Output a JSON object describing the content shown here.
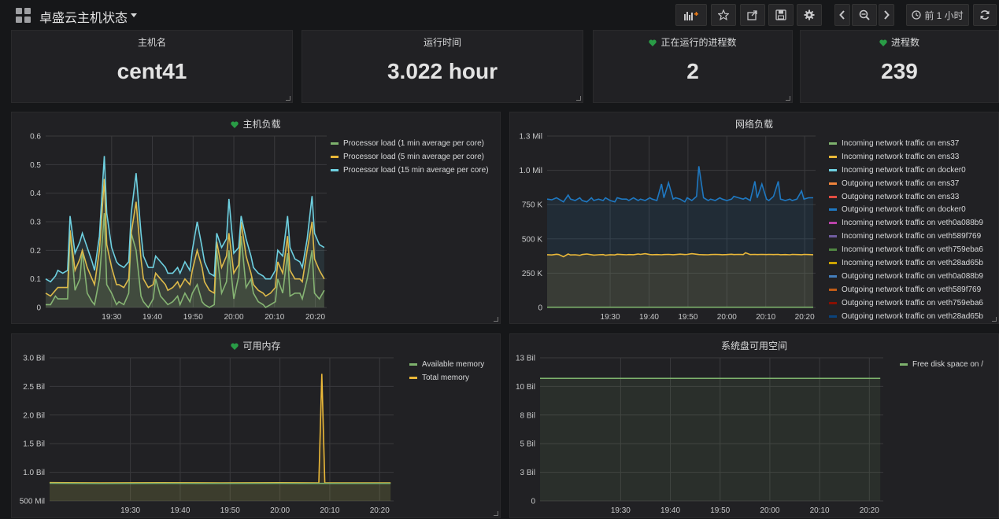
{
  "header": {
    "title": "卓盛云主机状态",
    "time_range": "前 1 小时",
    "icons": [
      "dashboard-grid-icon",
      "add-panel-icon",
      "star-icon",
      "share-icon",
      "save-icon",
      "settings-icon",
      "chevron-left-icon",
      "zoom-out-icon",
      "chevron-right-icon",
      "clock-icon",
      "refresh-icon"
    ]
  },
  "stats": [
    {
      "label": "主机名",
      "value": "cent41",
      "heart": false
    },
    {
      "label": "运行时间",
      "value": "3.022 hour",
      "heart": false
    },
    {
      "label": "正在运行的进程数",
      "value": "2",
      "heart": true
    },
    {
      "label": "进程数",
      "value": "239",
      "heart": true
    }
  ],
  "colors": {
    "green": "#7eb26d",
    "yellow": "#eab839",
    "cyan": "#6ed0e0",
    "orange": "#ef843c",
    "red": "#e24d42",
    "blue": "#1f78c1",
    "magenta": "#ba43a9",
    "purple": "#705da0",
    "dgreen": "#508642",
    "dyellow": "#cca300",
    "dblue": "#447ebc",
    "dorange": "#c15c17",
    "dred": "#890f02",
    "navy": "#0a437c",
    "heart": "#299c46"
  },
  "panels": {
    "load": {
      "title": "主机负载",
      "legend": [
        {
          "label": "Processor load (1 min average per core)",
          "color": "#7eb26d"
        },
        {
          "label": "Processor load (5 min average per core)",
          "color": "#eab839"
        },
        {
          "label": "Processor load (15 min average per core)",
          "color": "#6ed0e0"
        }
      ]
    },
    "network": {
      "title": "网络负载",
      "legend": [
        {
          "label": "Incoming network traffic on ens37",
          "color": "#7eb26d"
        },
        {
          "label": "Incoming network traffic on ens33",
          "color": "#eab839"
        },
        {
          "label": "Incoming network traffic on docker0",
          "color": "#6ed0e0"
        },
        {
          "label": "Outgoing network traffic on ens37",
          "color": "#ef843c"
        },
        {
          "label": "Outgoing network traffic on ens33",
          "color": "#e24d42"
        },
        {
          "label": "Outgoing network traffic on docker0",
          "color": "#1f78c1"
        },
        {
          "label": "Incoming network traffic on veth0a088b9",
          "color": "#ba43a9"
        },
        {
          "label": "Incoming network traffic on veth589f769",
          "color": "#705da0"
        },
        {
          "label": "Incoming network traffic on veth759eba6",
          "color": "#508642"
        },
        {
          "label": "Incoming network traffic on veth28ad65b",
          "color": "#cca300"
        },
        {
          "label": "Outgoing network traffic on veth0a088b9",
          "color": "#447ebc"
        },
        {
          "label": "Outgoing network traffic on veth589f769",
          "color": "#c15c17"
        },
        {
          "label": "Outgoing network traffic on veth759eba6",
          "color": "#890f02"
        },
        {
          "label": "Outgoing network traffic on veth28ad65b",
          "color": "#0a437c"
        }
      ]
    },
    "memory": {
      "title": "可用内存",
      "legend": [
        {
          "label": "Available memory",
          "color": "#7eb26d"
        },
        {
          "label": "Total memory",
          "color": "#eab839"
        }
      ]
    },
    "disk": {
      "title": "系统盘可用空间",
      "legend": [
        {
          "label": "Free disk space on /",
          "color": "#7eb26d"
        }
      ]
    }
  },
  "chart_data": [
    {
      "type": "line",
      "title": "主机负载",
      "x_ticks": [
        "19:30",
        "19:40",
        "19:50",
        "20:00",
        "20:10",
        "20:20"
      ],
      "y_ticks": [
        "0",
        "0.1",
        "0.2",
        "0.3",
        "0.4",
        "0.5",
        "0.6"
      ],
      "ylim": [
        0,
        0.6
      ],
      "xlim": [
        19.23,
        20.38
      ],
      "x": [
        19.23,
        19.25,
        19.27,
        19.28,
        19.3,
        19.32,
        19.33,
        19.35,
        19.37,
        19.38,
        19.4,
        19.42,
        19.43,
        19.45,
        19.47,
        19.48,
        19.5,
        19.52,
        19.53,
        19.55,
        19.57,
        19.58,
        19.6,
        19.62,
        19.63,
        19.65,
        19.67,
        19.68,
        19.7,
        19.72,
        19.73,
        19.75,
        19.77,
        19.78,
        19.8,
        19.82,
        19.83,
        19.85,
        19.87,
        19.88,
        19.9,
        19.92,
        19.93,
        19.95,
        19.97,
        19.98,
        20.0,
        20.02,
        20.03,
        20.05,
        20.07,
        20.08,
        20.1,
        20.12,
        20.13,
        20.15,
        20.17,
        20.18,
        20.2,
        20.22,
        20.23,
        20.25,
        20.27,
        20.28,
        20.3,
        20.32,
        20.33,
        20.35,
        20.37
      ],
      "series": [
        {
          "name": "Processor load (1 min average per core)",
          "values": [
            0.01,
            0.01,
            0.04,
            0.03,
            0.03,
            0.03,
            0.27,
            0.06,
            0.1,
            0.2,
            0.05,
            0.02,
            0.01,
            0.1,
            0.33,
            0.08,
            0.05,
            0.01,
            0.02,
            0.01,
            0.05,
            0.26,
            0.2,
            0.04,
            0.02,
            0.0,
            0.03,
            0.1,
            0.04,
            0.02,
            0.01,
            0.02,
            0.04,
            0.01,
            0.05,
            0.02,
            0.05,
            0.08,
            0.02,
            0.01,
            0.0,
            0.01,
            0.2,
            0.05,
            0.09,
            0.2,
            0.03,
            0.11,
            0.25,
            0.07,
            0.1,
            0.05,
            0.02,
            0.01,
            0.0,
            0.01,
            0.02,
            0.1,
            0.05,
            0.19,
            0.04,
            0.05,
            0.05,
            0.03,
            0.1,
            0.2,
            0.05,
            0.03,
            0.06
          ]
        },
        {
          "name": "Processor load (5 min average per core)",
          "values": [
            0.05,
            0.04,
            0.06,
            0.07,
            0.07,
            0.07,
            0.27,
            0.13,
            0.17,
            0.2,
            0.14,
            0.1,
            0.08,
            0.2,
            0.45,
            0.22,
            0.14,
            0.08,
            0.08,
            0.07,
            0.1,
            0.26,
            0.37,
            0.17,
            0.1,
            0.07,
            0.08,
            0.12,
            0.1,
            0.08,
            0.06,
            0.07,
            0.09,
            0.07,
            0.1,
            0.08,
            0.13,
            0.2,
            0.14,
            0.09,
            0.06,
            0.05,
            0.23,
            0.14,
            0.18,
            0.26,
            0.12,
            0.15,
            0.3,
            0.18,
            0.12,
            0.08,
            0.06,
            0.05,
            0.04,
            0.05,
            0.07,
            0.16,
            0.12,
            0.25,
            0.13,
            0.1,
            0.1,
            0.09,
            0.2,
            0.3,
            0.17,
            0.13,
            0.1
          ]
        },
        {
          "name": "Processor load (15 min average per core)",
          "values": [
            0.1,
            0.09,
            0.11,
            0.13,
            0.12,
            0.13,
            0.32,
            0.19,
            0.23,
            0.26,
            0.21,
            0.16,
            0.13,
            0.25,
            0.53,
            0.33,
            0.21,
            0.16,
            0.15,
            0.14,
            0.16,
            0.33,
            0.47,
            0.26,
            0.18,
            0.14,
            0.14,
            0.18,
            0.16,
            0.14,
            0.12,
            0.12,
            0.14,
            0.12,
            0.16,
            0.13,
            0.2,
            0.3,
            0.21,
            0.16,
            0.12,
            0.11,
            0.26,
            0.21,
            0.24,
            0.38,
            0.19,
            0.21,
            0.32,
            0.24,
            0.18,
            0.14,
            0.12,
            0.11,
            0.1,
            0.1,
            0.13,
            0.2,
            0.18,
            0.32,
            0.21,
            0.17,
            0.16,
            0.14,
            0.24,
            0.39,
            0.26,
            0.22,
            0.21
          ]
        }
      ]
    },
    {
      "type": "area",
      "title": "网络负载",
      "x_ticks": [
        "19:30",
        "19:40",
        "19:50",
        "20:00",
        "20:10",
        "20:20"
      ],
      "y_ticks": [
        "0",
        "250 K",
        "500 K",
        "750 K",
        "1.0 Mil",
        "1.3 Mil"
      ],
      "ylim": [
        0,
        1250000
      ],
      "xlim": [
        19.23,
        20.38
      ],
      "x": [
        19.23,
        19.25,
        19.27,
        19.28,
        19.3,
        19.32,
        19.33,
        19.35,
        19.37,
        19.38,
        19.4,
        19.42,
        19.43,
        19.45,
        19.47,
        19.48,
        19.5,
        19.52,
        19.53,
        19.55,
        19.57,
        19.58,
        19.6,
        19.62,
        19.63,
        19.65,
        19.67,
        19.68,
        19.7,
        19.72,
        19.73,
        19.75,
        19.77,
        19.78,
        19.8,
        19.82,
        19.83,
        19.85,
        19.87,
        19.88,
        19.9,
        19.92,
        19.93,
        19.95,
        19.97,
        19.98,
        20.0,
        20.02,
        20.03,
        20.05,
        20.07,
        20.08,
        20.1,
        20.12,
        20.13,
        20.15,
        20.17,
        20.18,
        20.2,
        20.22,
        20.23,
        20.25,
        20.27,
        20.28,
        20.3,
        20.32,
        20.33,
        20.35,
        20.37
      ],
      "series": [
        {
          "name": "Outgoing network traffic on docker0",
          "values": [
            790000,
            785000,
            800000,
            790000,
            770000,
            820000,
            790000,
            780000,
            800000,
            780000,
            770000,
            800000,
            780000,
            790000,
            780000,
            800000,
            780000,
            770000,
            800000,
            790000,
            790000,
            780000,
            800000,
            780000,
            790000,
            780000,
            800000,
            790000,
            780000,
            900000,
            800000,
            910000,
            790000,
            800000,
            790000,
            770000,
            800000,
            780000,
            810000,
            1030000,
            800000,
            780000,
            790000,
            780000,
            800000,
            790000,
            780000,
            790000,
            810000,
            800000,
            790000,
            800000,
            780000,
            920000,
            800000,
            900000,
            790000,
            780000,
            810000,
            920000,
            790000,
            780000,
            790000,
            780000,
            790000,
            850000,
            790000,
            800000,
            800000
          ]
        },
        {
          "name": "Incoming network traffic on ens33",
          "values": [
            385000,
            383000,
            388000,
            386000,
            370000,
            390000,
            383000,
            384000,
            380000,
            386000,
            390000,
            385000,
            382000,
            384000,
            386000,
            381000,
            385000,
            383000,
            388000,
            386000,
            384000,
            386000,
            385000,
            390000,
            387000,
            392000,
            386000,
            385000,
            386000,
            384000,
            386000,
            387000,
            385000,
            386000,
            389000,
            386000,
            387000,
            392000,
            388000,
            386000,
            385000,
            384000,
            386000,
            387000,
            386000,
            385000,
            386000,
            388000,
            386000,
            387000,
            386000,
            399000,
            386000,
            387000,
            386000,
            387000,
            386000,
            387000,
            386000,
            387000,
            385000,
            386000,
            384000,
            387000,
            386000,
            385000,
            387000,
            386000,
            385000
          ]
        },
        {
          "name": "Incoming network traffic on ens37",
          "values": [
            2000,
            2000,
            2000,
            2000,
            2000,
            2000,
            2000,
            2000,
            2000,
            2000,
            2000,
            2000,
            2000,
            2000,
            2000,
            2000,
            2000,
            2000,
            2000,
            2000,
            2000,
            2000,
            2000,
            2000,
            2000,
            2000,
            2000,
            2000,
            2000,
            2000,
            2000,
            2000,
            2000,
            2000,
            2000,
            2000,
            2000,
            2000,
            2000,
            2000,
            2000,
            2000,
            2000,
            2000,
            2000,
            2000,
            2000,
            2000,
            2000,
            2000,
            2000,
            2000,
            2000,
            2000,
            2000,
            2000,
            2000,
            2000,
            2000,
            2000,
            2000,
            2000,
            2000,
            2000,
            2000,
            2000,
            2000,
            2000,
            2000
          ]
        }
      ]
    },
    {
      "type": "line",
      "title": "可用内存",
      "x_ticks": [
        "19:30",
        "19:40",
        "19:50",
        "20:00",
        "20:10",
        "20:20"
      ],
      "y_ticks": [
        "500 Mil",
        "1.0 Bil",
        "1.5 Bil",
        "2.0 Bil",
        "2.5 Bil",
        "3.0 Bil"
      ],
      "ylim": [
        500000000,
        3000000000
      ],
      "xlim": [
        19.23,
        20.38
      ],
      "series": [
        {
          "name": "Total memory",
          "x": [
            19.23,
            19.4,
            19.6,
            19.8,
            20.0,
            20.13,
            20.14,
            20.15,
            20.2,
            20.37
          ],
          "values": [
            820000000,
            815000000,
            818000000,
            816000000,
            818000000,
            816000000,
            2720000000,
            816000000,
            816000000,
            816000000
          ]
        },
        {
          "name": "Available memory",
          "x": [
            19.23,
            19.4,
            19.6,
            19.8,
            20.0,
            20.13,
            20.14,
            20.15,
            20.2,
            20.37
          ],
          "values": [
            810000000,
            805000000,
            808000000,
            806000000,
            808000000,
            806000000,
            806000000,
            806000000,
            806000000,
            806000000
          ]
        }
      ]
    },
    {
      "type": "area",
      "title": "系统盘可用空间",
      "x_ticks": [
        "19:30",
        "19:40",
        "19:50",
        "20:00",
        "20:10",
        "20:20"
      ],
      "y_ticks": [
        "0",
        "3 Bil",
        "5 Bil",
        "8 Bil",
        "10 Bil",
        "13 Bil"
      ],
      "ylim": [
        0,
        12500000000
      ],
      "xlim": [
        19.23,
        20.38
      ],
      "series": [
        {
          "name": "Free disk space on /",
          "x": [
            19.23,
            20.37
          ],
          "values": [
            10700000000,
            10700000000
          ]
        }
      ]
    }
  ]
}
